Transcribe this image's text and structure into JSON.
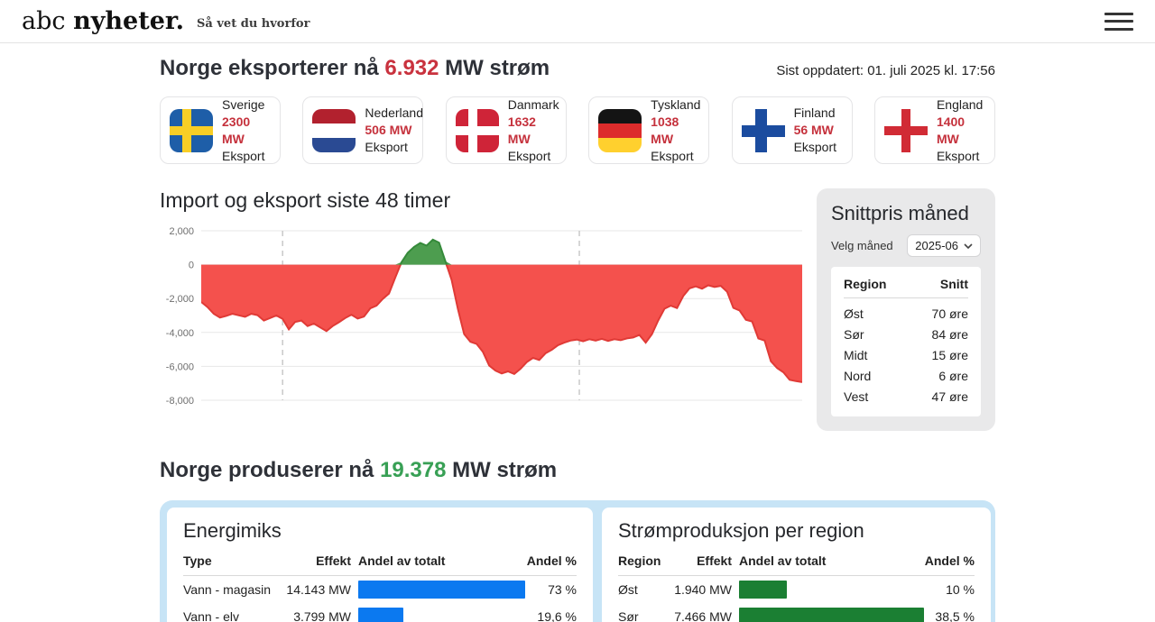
{
  "header": {
    "logo_abc": "abc ",
    "logo_nyheter": "nyheter.",
    "tagline": "Så vet du hvorfor"
  },
  "export_section": {
    "title_prefix": "Norge eksporterer nå ",
    "value": "6.932",
    "title_suffix": " MW strøm",
    "last_updated": "Sist oppdatert: 01. juli 2025 kl. 17:56",
    "cards": [
      {
        "country": "Sverige",
        "value": "2300 MW",
        "label": "Eksport",
        "flag_icon": "sweden-flag"
      },
      {
        "country": "Nederland",
        "value": "506 MW",
        "label": "Eksport",
        "flag_icon": "netherlands-flag"
      },
      {
        "country": "Danmark",
        "value": "1632 MW",
        "label": "Eksport",
        "flag_icon": "denmark-flag"
      },
      {
        "country": "Tyskland",
        "value": "1038 MW",
        "label": "Eksport",
        "flag_icon": "germany-flag"
      },
      {
        "country": "Finland",
        "value": "56 MW",
        "label": "Eksport",
        "flag_icon": "finland-flag"
      },
      {
        "country": "England",
        "value": "1400 MW",
        "label": "Eksport",
        "flag_icon": "england-flag"
      }
    ]
  },
  "price_panel": {
    "title": "Snittpris måned",
    "select_label": "Velg måned",
    "selected_month": "2025-06",
    "headers": {
      "region": "Region",
      "avg": "Snitt"
    },
    "rows": [
      {
        "region": "Øst",
        "value": "70 øre"
      },
      {
        "region": "Sør",
        "value": "84 øre"
      },
      {
        "region": "Midt",
        "value": "15 øre"
      },
      {
        "region": "Nord",
        "value": "6 øre"
      },
      {
        "region": "Vest",
        "value": "47 øre"
      }
    ]
  },
  "production_section": {
    "title_prefix": "Norge produserer nå ",
    "value": "19.378",
    "title_suffix": " MW strøm"
  },
  "energy_mix": {
    "title": "Energimiks",
    "headers": [
      "Type",
      "Effekt",
      "Andel av totalt",
      "Andel %"
    ],
    "rows": [
      {
        "name": "Vann - magasin",
        "effect": "14.143 MW",
        "pct": 73,
        "pct_label": "73 %"
      },
      {
        "name": "Vann - elv",
        "effect": "3.799 MW",
        "pct": 19.6,
        "pct_label": "19,6 %"
      }
    ]
  },
  "region_production": {
    "title": "Strømproduksjon per region",
    "headers": [
      "Region",
      "Effekt",
      "Andel av totalt",
      "Andel %"
    ],
    "rows": [
      {
        "name": "Øst",
        "effect": "1.940 MW",
        "pct": 10,
        "pct_label": "10 %"
      },
      {
        "name": "Sør",
        "effect": "7.466 MW",
        "pct": 38.5,
        "pct_label": "38,5 %"
      }
    ]
  },
  "colors": {
    "accent_red": "#c9323e",
    "accent_green": "#38a055",
    "chart_negative_fill": "#f4514d",
    "chart_negative_stroke": "#e03a36",
    "chart_positive_fill": "#4d9d4f",
    "chart_positive_stroke": "#358a3a",
    "bar_blue": "#0b79f0",
    "bar_green": "#1b7f33"
  },
  "chart_data": [
    {
      "type": "area",
      "title": "Import og eksport siste 48 timer",
      "xlabel": "",
      "ylabel": "",
      "hours": 48,
      "step_hours": 0.5,
      "ylim": [
        -8000,
        2000
      ],
      "ytick_values": [
        2000,
        0,
        -2000,
        -4000,
        -6000,
        -8000
      ],
      "yticks": [
        "2,000",
        "0",
        "-2,000",
        "-4,000",
        "-6,000",
        "-8,000"
      ],
      "dashed_x_hours": [
        6.5,
        30.2
      ],
      "grid": true,
      "legend": "none",
      "note_negative_means": "eksport",
      "values": [
        -2200,
        -2500,
        -2900,
        -3120,
        -3020,
        -2900,
        -2990,
        -3080,
        -2900,
        -2980,
        -3300,
        -3150,
        -3000,
        -3200,
        -3820,
        -3380,
        -3300,
        -3620,
        -3480,
        -3700,
        -3920,
        -3620,
        -3400,
        -3150,
        -2950,
        -3180,
        -3060,
        -2580,
        -2420,
        -2020,
        -1700,
        -750,
        150,
        700,
        1050,
        1280,
        1120,
        1480,
        1300,
        200,
        -900,
        -2600,
        -4100,
        -4550,
        -4680,
        -5150,
        -5950,
        -6250,
        -6420,
        -6300,
        -6450,
        -6150,
        -5750,
        -5500,
        -5620,
        -5230,
        -5020,
        -4750,
        -4600,
        -4480,
        -4420,
        -4520,
        -4400,
        -4480,
        -4380,
        -4500,
        -4400,
        -4460,
        -4350,
        -4300,
        -4150,
        -4600,
        -4100,
        -3300,
        -2600,
        -2420,
        -2560,
        -1850,
        -1400,
        -1280,
        -1420,
        -1220,
        -1320,
        -1250,
        -1600,
        -2550,
        -2700,
        -3250,
        -3350,
        -4350,
        -4480,
        -5700,
        -6100,
        -6350,
        -6800,
        -6870,
        -6932
      ]
    },
    {
      "type": "bar",
      "title": "Energimiks",
      "categories": [
        "Vann - magasin",
        "Vann - elv"
      ],
      "values_mw": [
        14143,
        3799
      ],
      "values_pct": [
        73,
        19.6
      ],
      "bar_color": "#0b79f0"
    },
    {
      "type": "bar",
      "title": "Strømproduksjon per region",
      "categories": [
        "Øst",
        "Sør"
      ],
      "values_mw": [
        1940,
        7466
      ],
      "values_pct": [
        10,
        38.5
      ],
      "bar_color": "#1b7f33"
    },
    {
      "type": "table",
      "title": "Snittpris måned 2025-06",
      "columns": [
        "Region",
        "Snitt"
      ],
      "rows": [
        [
          "Øst",
          "70 øre"
        ],
        [
          "Sør",
          "84 øre"
        ],
        [
          "Midt",
          "15 øre"
        ],
        [
          "Nord",
          "6 øre"
        ],
        [
          "Vest",
          "47 øre"
        ]
      ]
    }
  ]
}
